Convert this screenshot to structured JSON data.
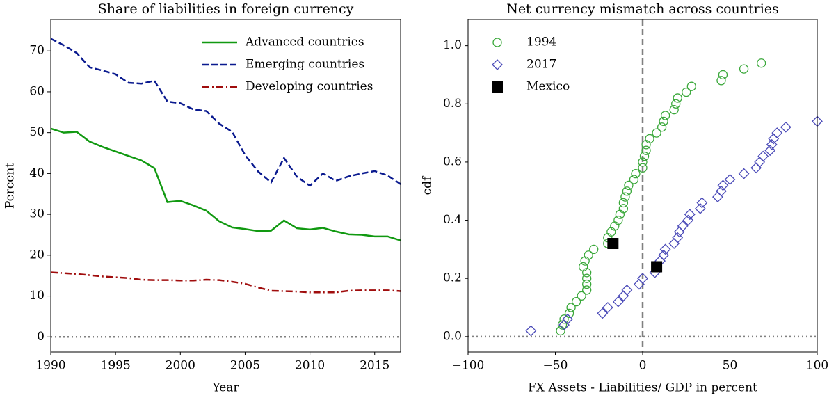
{
  "chart_data": [
    {
      "type": "line",
      "title": "Share of liabilities in foreign currency",
      "xlabel": "Year",
      "ylabel": "Percent",
      "x": [
        1990,
        1991,
        1992,
        1993,
        1994,
        1995,
        1996,
        1997,
        1998,
        1999,
        2000,
        2001,
        2002,
        2003,
        2004,
        2005,
        2006,
        2007,
        2008,
        2009,
        2010,
        2011,
        2012,
        2013,
        2014,
        2015,
        2016,
        2017
      ],
      "series": [
        {
          "name": "Advanced countries",
          "color": "#119911",
          "linestyle": "solid",
          "values": [
            51,
            50,
            50.2,
            47.8,
            46.5,
            45.4,
            44.3,
            43.2,
            41.3,
            33,
            33.3,
            32.2,
            30.9,
            28.3,
            26.8,
            26.4,
            25.9,
            26,
            28.5,
            26.6,
            26.3,
            26.7,
            25.8,
            25.1,
            25,
            24.6,
            24.6,
            23.6
          ]
        },
        {
          "name": "Emerging countries",
          "color": "#0a1a8f",
          "linestyle": "dashed",
          "values": [
            73,
            71.4,
            69.5,
            66,
            65.2,
            64.3,
            62.2,
            62,
            62.7,
            57.6,
            57.2,
            55.7,
            55.3,
            52.2,
            50.2,
            44.5,
            40.5,
            37.8,
            43.8,
            39.2,
            37,
            40,
            38.2,
            39.3,
            40,
            40.6,
            39.5,
            37.4
          ]
        },
        {
          "name": "Developing countries",
          "color": "#a00d0d",
          "linestyle": "dashdot",
          "values": [
            15.8,
            15.6,
            15.4,
            15.1,
            14.8,
            14.6,
            14.4,
            14,
            13.9,
            13.9,
            13.8,
            13.8,
            14,
            13.9,
            13.5,
            13,
            12.1,
            11.3,
            11.2,
            11.1,
            10.9,
            10.9,
            10.9,
            11.3,
            11.4,
            11.4,
            11.4,
            11.2
          ]
        }
      ],
      "xlim": [
        1990,
        2017
      ],
      "xticks": [
        1990,
        1995,
        2000,
        2005,
        2010,
        2015
      ],
      "ylim": [
        -3.7,
        77.7
      ],
      "yticks": [
        0,
        10,
        20,
        30,
        40,
        50,
        60,
        70
      ],
      "hline": 0,
      "legend": "upper right"
    },
    {
      "type": "scatter",
      "title": "Net currency mismatch across countries",
      "xlabel": "FX Assets - Liabilities/ GDP in percent",
      "ylabel": "cdf",
      "series": [
        {
          "name": "1994",
          "color": "#3aa83a",
          "marker": "circle",
          "x": [
            -47,
            -46,
            -45,
            -42,
            -41,
            -38,
            -35,
            -32,
            -32,
            -32,
            -32,
            -34,
            -33,
            -31,
            -28,
            -20,
            -20,
            -18,
            -16,
            -14,
            -13,
            -11,
            -11,
            -10,
            -9,
            -8,
            -5,
            -4,
            0,
            0,
            1,
            2,
            2,
            4,
            8,
            11,
            12,
            13,
            18,
            19,
            20,
            25,
            28,
            45,
            46,
            58,
            68
          ],
          "values": [
            0.02,
            0.04,
            0.06,
            0.08,
            0.1,
            0.12,
            0.14,
            0.16,
            0.18,
            0.2,
            0.22,
            0.24,
            0.26,
            0.28,
            0.3,
            0.32,
            0.34,
            0.36,
            0.38,
            0.4,
            0.42,
            0.44,
            0.46,
            0.48,
            0.5,
            0.52,
            0.54,
            0.56,
            0.58,
            0.6,
            0.62,
            0.64,
            0.66,
            0.68,
            0.7,
            0.72,
            0.74,
            0.76,
            0.78,
            0.8,
            0.82,
            0.84,
            0.86,
            0.88,
            0.9,
            0.92,
            0.94
          ]
        },
        {
          "name": "2017",
          "color": "#4a4ab8",
          "marker": "diamond",
          "x": [
            -64,
            -45,
            -43,
            -23,
            -20,
            -14,
            -11,
            -9,
            -2,
            0,
            7,
            8,
            10,
            12,
            13,
            18,
            20,
            21,
            23,
            26,
            27,
            33,
            34,
            43,
            45,
            46,
            50,
            58,
            65,
            67,
            69,
            73,
            74,
            75,
            77,
            82,
            100
          ],
          "values": [
            0.02,
            0.04,
            0.06,
            0.08,
            0.1,
            0.12,
            0.14,
            0.16,
            0.18,
            0.2,
            0.22,
            0.24,
            0.26,
            0.28,
            0.3,
            0.32,
            0.34,
            0.36,
            0.38,
            0.4,
            0.42,
            0.44,
            0.46,
            0.48,
            0.5,
            0.52,
            0.54,
            0.56,
            0.58,
            0.6,
            0.62,
            0.64,
            0.66,
            0.68,
            0.7,
            0.72,
            0.74
          ]
        },
        {
          "name": "Mexico",
          "color": "#000000",
          "marker": "square",
          "x": [
            -17,
            8
          ],
          "values": [
            0.32,
            0.24
          ]
        }
      ],
      "xlim": [
        -100,
        100
      ],
      "xticks": [
        {
          "value": -100,
          "label": "−100"
        },
        {
          "value": -50,
          "label": "−50"
        },
        0,
        50,
        100
      ],
      "ylim": [
        -0.053,
        1.09
      ],
      "yticks": [
        {
          "value": 0,
          "label": "0.0"
        },
        {
          "value": 0.2,
          "label": "0.2"
        },
        {
          "value": 0.4,
          "label": "0.4"
        },
        {
          "value": 0.6,
          "label": "0.6"
        },
        {
          "value": 0.8,
          "label": "0.8"
        },
        {
          "value": 1,
          "label": "1.0"
        }
      ],
      "hline": 0,
      "vline": 0,
      "legend": "upper left"
    }
  ]
}
